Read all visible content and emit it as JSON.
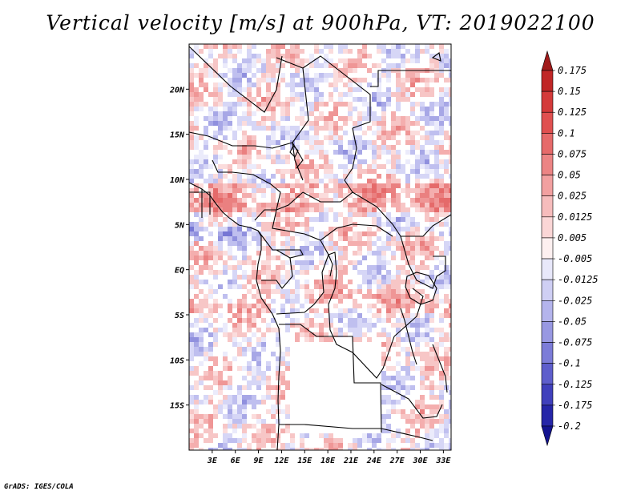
{
  "title": "Vertical velocity [m/s] at 900hPa, VT: 2019022100",
  "credit": "GrADS: IGES/COLA",
  "map": {
    "variable": "Vertical velocity",
    "units": "m/s",
    "level": "900hPa",
    "valid_time": "2019022100",
    "lon_range": [
      0,
      34
    ],
    "lat_range": [
      -20,
      25
    ],
    "x_ticks": [
      {
        "value": 3,
        "label": "3E"
      },
      {
        "value": 6,
        "label": "6E"
      },
      {
        "value": 9,
        "label": "9E"
      },
      {
        "value": 12,
        "label": "12E"
      },
      {
        "value": 15,
        "label": "15E"
      },
      {
        "value": 18,
        "label": "18E"
      },
      {
        "value": 21,
        "label": "21E"
      },
      {
        "value": 24,
        "label": "24E"
      },
      {
        "value": 27,
        "label": "27E"
      },
      {
        "value": 30,
        "label": "30E"
      },
      {
        "value": 33,
        "label": "33E"
      }
    ],
    "y_ticks": [
      {
        "value": 20,
        "label": "20N"
      },
      {
        "value": 15,
        "label": "15N"
      },
      {
        "value": 10,
        "label": "10N"
      },
      {
        "value": 5,
        "label": "5N"
      },
      {
        "value": 0,
        "label": "EQ"
      },
      {
        "value": -5,
        "label": "5S"
      },
      {
        "value": -10,
        "label": "10S"
      },
      {
        "value": -15,
        "label": "15S"
      }
    ]
  },
  "colorbar": {
    "levels": [
      "0.175",
      "0.15",
      "0.125",
      "0.1",
      "0.075",
      "0.05",
      "0.025",
      "0.0125",
      "0.005",
      "-0.005",
      "-0.0125",
      "-0.025",
      "-0.05",
      "-0.075",
      "-0.1",
      "-0.125",
      "-0.175",
      "-0.2"
    ],
    "colors": [
      "#a01a1a",
      "#c02626",
      "#d43a3a",
      "#e05050",
      "#e66a6a",
      "#ec8484",
      "#f2a0a0",
      "#f6bcbc",
      "#fad6d6",
      "#fdf0f0",
      "#e8e8fa",
      "#cfcff4",
      "#b4b4ec",
      "#9898e2",
      "#7c7cd8",
      "#5e5ecc",
      "#4040bc",
      "#2626a8",
      "#141490"
    ]
  }
}
